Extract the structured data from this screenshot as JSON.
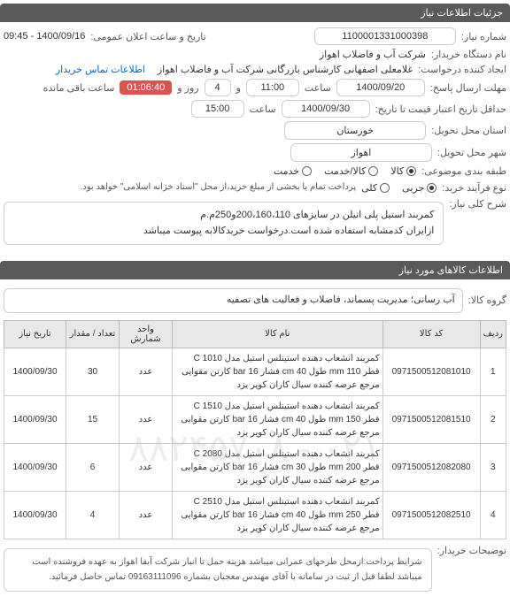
{
  "watermark": "۰۲۱ - ۸۸۲۴۵۷۰۸",
  "section1": {
    "title": "جزئیات اطلاعات نیاز"
  },
  "fields": {
    "need_no_label": "شماره نیاز:",
    "need_no": "1100001331000398",
    "announce_label": "تاریخ و ساعت اعلان عمومی:",
    "announce": "1400/09/16 - 09:45",
    "org_label": "نام دستگاه خریدار:",
    "org": "شرکت آب و فاضلاب اهواز",
    "creator_label": "ایجاد کننده درخواست:",
    "creator": "غلامعلی اصفهانی کارشناس بازرگانی شرکت آب و فاضلاب اهواز",
    "contact_link": "اطلاعات تماس خریدار",
    "deadline_label": "مهلت ارسال پاسخ:",
    "deadline_date": "1400/09/20",
    "time_label": "ساعت",
    "deadline_time": "11:00",
    "and_label": "و",
    "days": "4",
    "days_label": "روز و",
    "countdown": "01:06:40",
    "remain_label": "ساعت باقی مانده",
    "validity_label": "حداقل تاریخ اعتبار قیمت تا تاریخ:",
    "validity_date": "1400/09/30",
    "validity_time": "15:00",
    "province_label": "استان محل تحویل:",
    "province": "خوزستان",
    "city_label": "شهر محل تحویل:",
    "city": "اهواز",
    "category_label": "طبقه بندی موضوعی:",
    "cat_goods": "کالا",
    "cat_service": "کالا/خدمت",
    "cat_serv": "خدمت",
    "buy_type_label": "نوع فرآیند خرید:",
    "bt_partial": "جزیی",
    "bt_full": "کلی",
    "buy_note": "پرداخت تمام یا بخشی از مبلغ خرید،از محل \"اسناد خزانه اسلامی\" خواهد بود.",
    "desc_label": "شرح کلی نیاز:",
    "desc": "کمربند استیل پلی اتیلن در سایزهای 200،160،110و250م.م\nازایران کدمشابه استفاده شده است.درخواست خریدکالابه پیوست میباشد"
  },
  "section2": {
    "title": "اطلاعات کالاهای مورد نیاز"
  },
  "group": {
    "label": "گروه کالا:",
    "value": "آب رسانی؛ مدیریت پسماند، فاضلاب و فعالیت های تصفیه"
  },
  "table": {
    "headers": {
      "row": "ردیف",
      "code": "کد کالا",
      "name": "نام کالا",
      "unit": "واحد شمارش",
      "qty": "تعداد / مقدار",
      "date": "تاریخ نیاز"
    },
    "rows": [
      {
        "idx": "1",
        "code": "0971500512081010",
        "name": "کمربند انشعاب دهنده استینلس استیل مدل C 1010 قطر 110 mm طول 40 cm فشار 16 bar کارتن مقوایی مرجع عرضه کننده سیال کاران کویر یزد",
        "unit": "عدد",
        "qty": "30",
        "date": "1400/09/30"
      },
      {
        "idx": "2",
        "code": "0971500512081510",
        "name": "کمربند انشعاب دهنده استینلس استیل مدل C 1510 قطر 150 mm طول 40 cm فشار 16 bar کارتن مقوایی مرجع عرضه کننده سیال کاران کویر یزد",
        "unit": "عدد",
        "qty": "15",
        "date": "1400/09/30"
      },
      {
        "idx": "3",
        "code": "0971500512082080",
        "name": "کمربند انشعاب دهنده استینلس استیل مدل C 2080 قطر 200 mm طول 30 cm فشار 16 bar کارتن مقوایی مرجع عرضه کننده سیال کاران کویر یزد",
        "unit": "عدد",
        "qty": "6",
        "date": "1400/09/30"
      },
      {
        "idx": "4",
        "code": "0971500512082510",
        "name": "کمربند انشعاب دهنده استینلس استیل مدل C 2510 قطر 250 mm طول 40 cm فشار 16 bar کارتن مقوایی مرجع عرضه کننده سیال کاران کویر یزد",
        "unit": "عدد",
        "qty": "4",
        "date": "1400/09/30"
      }
    ]
  },
  "footer": {
    "label": "توضیحات خریدار:",
    "text": "شرایط پرداخت:ازمحل طرحهای عمرانی میباشد هزینه حمل تا انبار شرکت آبفا اهواز به عهده فروشنده است میباشد لطفا قبل از ثبت در سامانه با آقای مهندس معجبان بشماره 09163111096 تماس حاصل فرمائید."
  },
  "colors": {
    "header_bg": "#5a5a5a",
    "border": "#cccccc",
    "countdown_bg": "#d9534f",
    "link": "#0066cc",
    "th_bg": "#e8e8e8"
  }
}
